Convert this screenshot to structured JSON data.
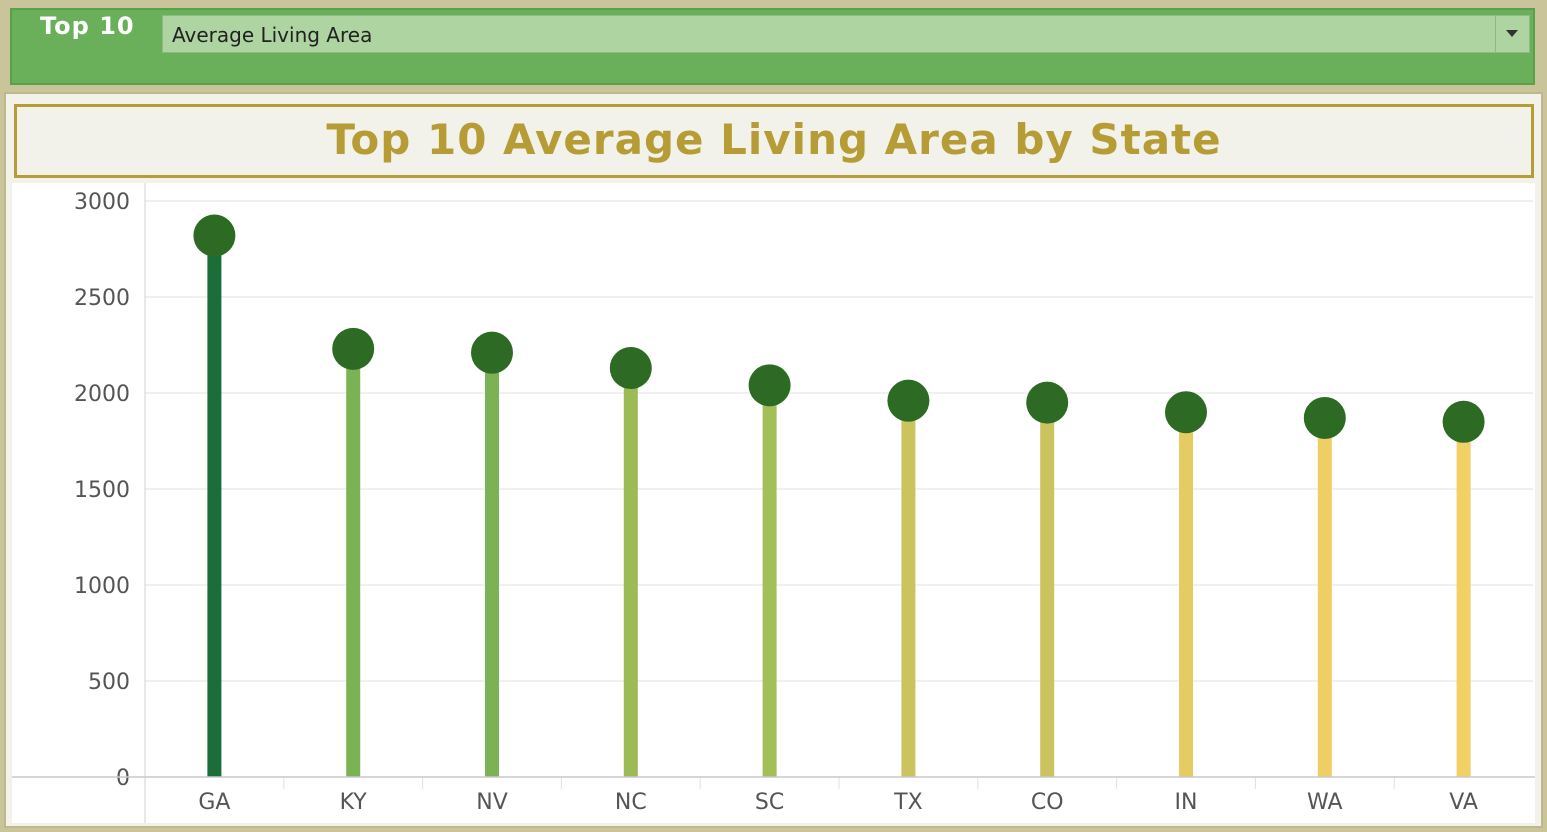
{
  "filter": {
    "label": "Top 10",
    "selected_measure": "Average Living Area"
  },
  "chart_data": {
    "type": "lollipop",
    "title": "Top 10 Average Living Area by State",
    "xlabel": "",
    "ylabel": "",
    "categories": [
      "GA",
      "KY",
      "NV",
      "NC",
      "SC",
      "TX",
      "CO",
      "IN",
      "WA",
      "VA"
    ],
    "values": [
      2820,
      2230,
      2210,
      2130,
      2040,
      1960,
      1950,
      1900,
      1870,
      1850
    ],
    "ylim": [
      0,
      3000
    ],
    "yticks": [
      0,
      500,
      1000,
      1500,
      2000,
      2500,
      3000
    ],
    "grid": true,
    "stem_colors": [
      "#1a6e38",
      "#7bb254",
      "#7bb254",
      "#9bbb55",
      "#a3bf57",
      "#cbc35d",
      "#cbc35d",
      "#e4cc62",
      "#efcf64",
      "#f1d066"
    ],
    "marker_color": "#2d6b25"
  }
}
